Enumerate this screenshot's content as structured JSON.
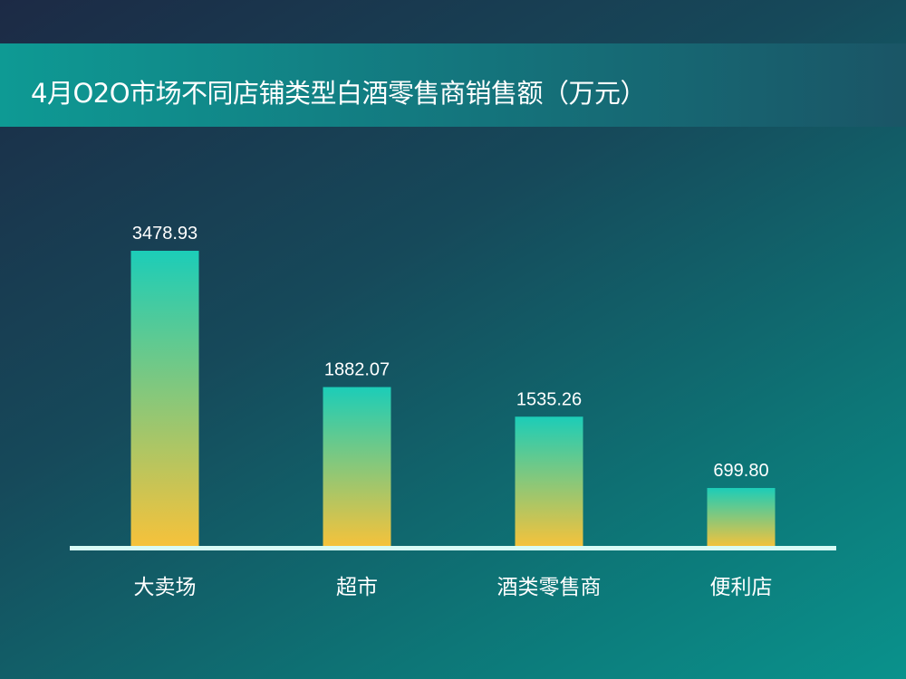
{
  "chart_data": {
    "type": "bar",
    "title": "4月O2O市场不同店铺类型白酒零售商销售额（万元）",
    "categories": [
      "大卖场",
      "超市",
      "酒类零售商",
      "便利店"
    ],
    "values": [
      3478.93,
      1882.07,
      1535.26,
      699.8
    ],
    "value_labels": [
      "3478.93",
      "1882.07",
      "1535.26",
      "699.80"
    ],
    "ylim": [
      0,
      3478.93
    ],
    "grid": false,
    "legend": "none",
    "colors": {
      "bar_top": "#1ccdb8",
      "bar_bottom": "#f7c23a",
      "axis": "#d8fbf5"
    }
  }
}
